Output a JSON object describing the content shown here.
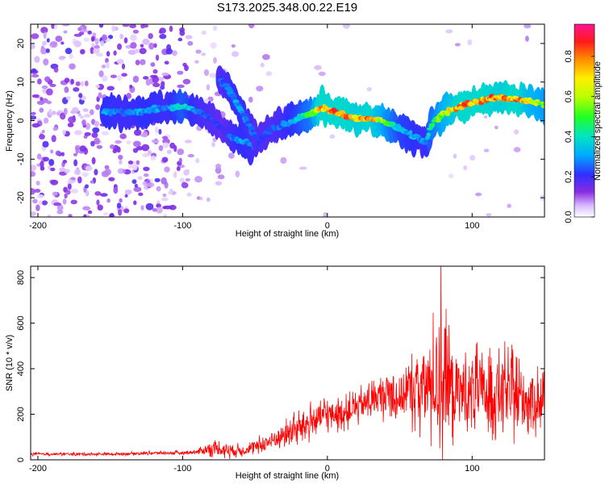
{
  "title": "S173.2025.348.00.22.E19",
  "chart_data": [
    {
      "type": "heatmap",
      "name": "spectrogram",
      "xlabel": "Height of straight line (km)",
      "ylabel": "Frequency (Hz)",
      "xlim": [
        -205,
        150
      ],
      "ylim": [
        -25,
        25
      ],
      "xticks": [
        -200,
        -100,
        0,
        100
      ],
      "yticks": [
        -20,
        -10,
        0,
        10,
        20
      ],
      "colorbar": {
        "label": "Normalized spectral amplitude",
        "range": [
          0.0,
          0.96
        ],
        "ticks": [
          0.0,
          0.2,
          0.4,
          0.6,
          0.8
        ]
      },
      "ridge": {
        "description": "dominant frequency track vs height",
        "x": [
          -155,
          -140,
          -125,
          -110,
          -100,
          -90,
          -80,
          -72,
          -65,
          -58,
          -52,
          -45,
          -38,
          -30,
          -20,
          -10,
          -5,
          0,
          10,
          20,
          30,
          40,
          50,
          60,
          68,
          72,
          80,
          90,
          100,
          110,
          120,
          130,
          140,
          150
        ],
        "y": [
          2.5,
          2.0,
          2.5,
          3.5,
          3.5,
          2.5,
          0.5,
          -2.5,
          -4.5,
          -5.5,
          -6.5,
          -4.5,
          -2.0,
          -1.0,
          0.5,
          2.0,
          3.5,
          3.0,
          1.5,
          0.5,
          0.5,
          -0.5,
          -2.0,
          -4.0,
          -5.5,
          -1.0,
          2.0,
          3.5,
          4.5,
          5.5,
          6.0,
          5.5,
          5.0,
          4.0
        ],
        "amplitude": [
          0.35,
          0.3,
          0.35,
          0.3,
          0.45,
          0.3,
          0.25,
          0.2,
          0.3,
          0.35,
          0.3,
          0.25,
          0.25,
          0.3,
          0.4,
          0.55,
          0.9,
          0.85,
          0.9,
          0.8,
          0.85,
          0.6,
          0.4,
          0.35,
          0.3,
          0.5,
          0.65,
          0.85,
          0.9,
          0.85,
          0.8,
          0.9,
          0.7,
          0.6
        ]
      },
      "branch": {
        "description": "secondary descending streak",
        "x": [
          -75,
          -68,
          -62,
          -56,
          -50
        ],
        "y": [
          11,
          8,
          4,
          0,
          -4
        ],
        "amplitude": [
          0.25,
          0.3,
          0.35,
          0.3,
          0.25
        ]
      }
    },
    {
      "type": "line",
      "name": "snr",
      "xlabel": "Height of straight line (km)",
      "ylabel": "SNR (10 * v/v)",
      "xlim": [
        -205,
        150
      ],
      "ylim": [
        0,
        850
      ],
      "xticks": [
        -200,
        -100,
        0,
        100
      ],
      "yticks": [
        0,
        200,
        400,
        600,
        800
      ],
      "series": [
        {
          "name": "SNR",
          "color": "#ff0000",
          "x": [
            -205,
            -180,
            -150,
            -120,
            -100,
            -90,
            -80,
            -70,
            -60,
            -50,
            -40,
            -30,
            -20,
            -10,
            0,
            10,
            20,
            30,
            40,
            50,
            60,
            70,
            75,
            80,
            85,
            90,
            100,
            110,
            120,
            130,
            140,
            150
          ],
          "mean": [
            25,
            25,
            25,
            30,
            30,
            35,
            50,
            45,
            40,
            55,
            80,
            110,
            140,
            170,
            200,
            200,
            230,
            260,
            290,
            280,
            310,
            320,
            360,
            380,
            320,
            300,
            300,
            290,
            300,
            280,
            260,
            260
          ],
          "spread": [
            8,
            8,
            8,
            10,
            10,
            15,
            40,
            50,
            30,
            40,
            60,
            70,
            90,
            100,
            90,
            80,
            90,
            100,
            130,
            150,
            200,
            300,
            350,
            460,
            300,
            250,
            220,
            220,
            230,
            220,
            180,
            180
          ],
          "peak": {
            "x": 78.5,
            "y": 850
          }
        }
      ]
    }
  ]
}
